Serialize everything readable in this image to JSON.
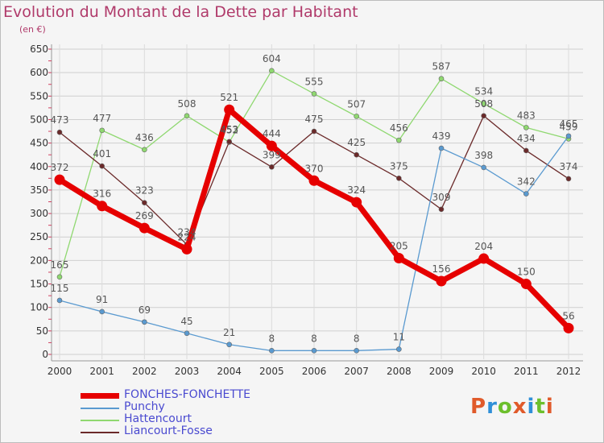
{
  "header": {
    "title": "Evolution du Montant de la Dette par Habitant",
    "subtitle": "(en €)"
  },
  "logo": {
    "text": "Proxiti",
    "colors": [
      "#e05a2a",
      "#2f8fd8",
      "#6cbf2c",
      "#e05a2a",
      "#2f8fd8",
      "#6cbf2c",
      "#e05a2a"
    ]
  },
  "chart_data": {
    "type": "line",
    "title": "Evolution du Montant de la Dette par Habitant",
    "subtitle": "(en €)",
    "xlabel": "",
    "ylabel": "",
    "ylim": [
      0,
      650
    ],
    "yticks": [
      0,
      50,
      100,
      150,
      200,
      250,
      300,
      350,
      400,
      450,
      500,
      550,
      600,
      650
    ],
    "grid": true,
    "legend": "bottom-left",
    "categories": [
      "2000",
      "2001",
      "2002",
      "2003",
      "2004",
      "2005",
      "2006",
      "2007",
      "2008",
      "2009",
      "2010",
      "2011",
      "2012"
    ],
    "series": [
      {
        "name": "Hattencourt",
        "color": "#8fd870",
        "values": [
          165,
          477,
          436,
          508,
          452,
          604,
          555,
          507,
          456,
          587,
          534,
          483,
          459
        ]
      },
      {
        "name": "Liancourt-Fosse",
        "color": "#6b2a2a",
        "values": [
          473,
          401,
          323,
          234,
          453,
          399,
          475,
          425,
          375,
          309,
          508,
          434,
          374
        ]
      },
      {
        "name": "Punchy",
        "color": "#5a9ad0",
        "values": [
          115,
          91,
          69,
          45,
          21,
          8,
          8,
          8,
          11,
          439,
          398,
          342,
          465
        ]
      },
      {
        "name": "FONCHES-FONCHETTE",
        "color": "#e60000",
        "values": [
          372,
          316,
          269,
          224,
          521,
          444,
          370,
          324,
          205,
          156,
          204,
          150,
          56
        ]
      }
    ],
    "legend_order": [
      "FONCHES-FONCHETTE",
      "Punchy",
      "Hattencourt",
      "Liancourt-Fosse"
    ]
  }
}
